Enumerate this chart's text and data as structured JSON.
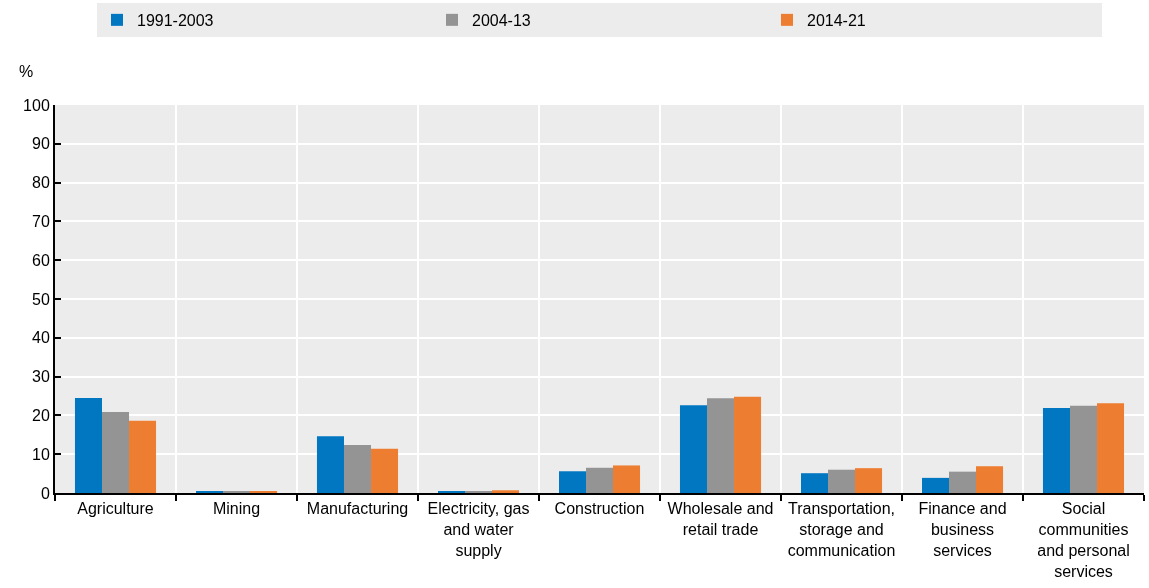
{
  "chart_data": {
    "type": "bar",
    "ylabel": "%",
    "categories": [
      "Agriculture",
      "Mining",
      "Manufacturing",
      "Electricity, gas\nand water\nsupply",
      "Construction",
      "Wholesale and\nretail trade",
      "Transportation,\nstorage and\ncommunication",
      "Finance and\nbusiness\nservices",
      "Social\ncommunities\nand personal\nservices"
    ],
    "series": [
      {
        "name": "1991-2003",
        "color": "#0077c0",
        "values": [
          24.5,
          0.3,
          14.6,
          0.5,
          5.6,
          22.6,
          5.1,
          3.9,
          21.9
        ]
      },
      {
        "name": "2004-13",
        "color": "#949494",
        "values": [
          20.9,
          0.5,
          12.4,
          0.5,
          6.5,
          24.4,
          6.0,
          5.5,
          22.5
        ]
      },
      {
        "name": "2014-21",
        "color": "#ed7d31",
        "values": [
          18.6,
          0.5,
          11.4,
          0.7,
          7.1,
          24.8,
          6.4,
          6.9,
          23.1
        ]
      }
    ],
    "ylim": [
      0,
      100
    ],
    "yticks": [
      0,
      10,
      20,
      30,
      40,
      50,
      60,
      70,
      80,
      90,
      100
    ],
    "grid": true,
    "legend": "top"
  }
}
